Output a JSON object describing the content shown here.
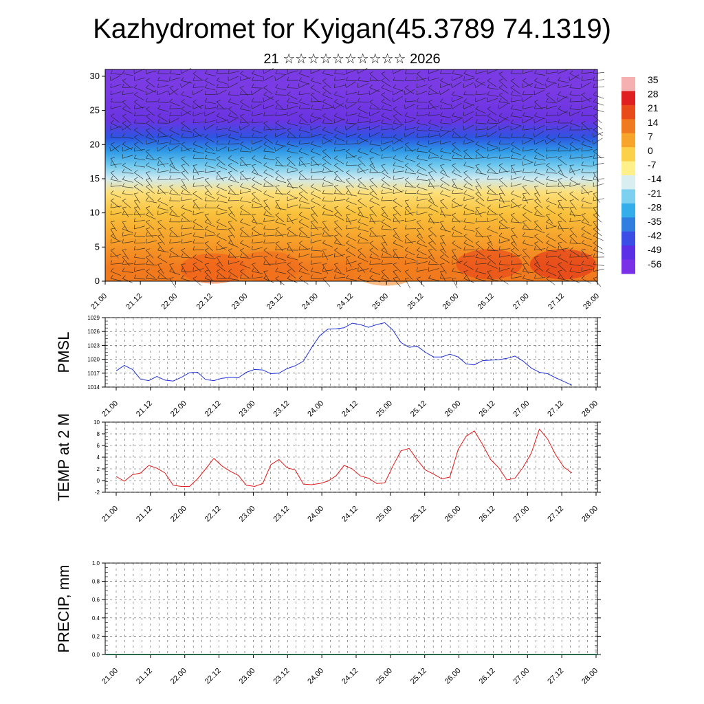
{
  "title": "Kazhydromet for Kyigan(45.3789 74.1319)",
  "subtitle": "21 ☆☆☆☆☆☆☆☆☆☆ 2026",
  "chart_data": [
    {
      "type": "heatmap",
      "title": "",
      "xlabel": "",
      "ylabel": "",
      "x_ticks": [
        "21.00",
        "21.12",
        "22.00",
        "22.12",
        "23.00",
        "23.12",
        "24.00",
        "24.12",
        "25.00",
        "25.12",
        "26.00",
        "26.12",
        "27.00",
        "27.12",
        "28.00"
      ],
      "y_ticks": [
        0,
        5,
        10,
        15,
        20,
        25,
        30
      ],
      "ylim": [
        0,
        31
      ],
      "colorbar": {
        "labels": [
          "35",
          "28",
          "21",
          "14",
          "7",
          "0",
          "-7",
          "-14",
          "-21",
          "-28",
          "-35",
          "-42",
          "-49",
          "-56"
        ],
        "colors": [
          "#f5b0b0",
          "#e02020",
          "#e84a1a",
          "#f07a20",
          "#f6a42a",
          "#fbd04a",
          "#fff08a",
          "#d9eef0",
          "#7ed0f0",
          "#34aeea",
          "#2f7ee0",
          "#3a4ee6",
          "#5b2fe6",
          "#7a30e6"
        ]
      },
      "layers": [
        {
          "y_from": 0,
          "y_to": 4,
          "color": "#f27a1e"
        },
        {
          "y_from": 4,
          "y_to": 8,
          "color": "#f6a02a"
        },
        {
          "y_from": 8,
          "y_to": 12,
          "color": "#f9c23c"
        },
        {
          "y_from": 12,
          "y_to": 14,
          "color": "#fde07a"
        },
        {
          "y_from": 14,
          "y_to": 16,
          "color": "#cfeaf0"
        },
        {
          "y_from": 16,
          "y_to": 18,
          "color": "#6ec8ee"
        },
        {
          "y_from": 18,
          "y_to": 20,
          "color": "#2f9ae6"
        },
        {
          "y_from": 20,
          "y_to": 22,
          "color": "#2c56e2"
        },
        {
          "y_from": 22,
          "y_to": 25,
          "color": "#6a34e2"
        },
        {
          "y_from": 25,
          "y_to": 31,
          "color": "#7a3ae4"
        }
      ]
    },
    {
      "type": "line",
      "ylabel": "PMSL",
      "x_ticks": [
        "21.00",
        "21.12",
        "22.00",
        "22.12",
        "23.00",
        "23.12",
        "24.00",
        "24.12",
        "25.00",
        "25.12",
        "26.00",
        "26.12",
        "27.00",
        "27.12",
        "28.00"
      ],
      "y_ticks": [
        1014,
        1017,
        1020,
        1023,
        1026,
        1029
      ],
      "ylim": [
        1014,
        1029
      ],
      "series": [
        {
          "color": "#1f2fd6",
          "values": [
            1017.5,
            1018.7,
            1017.8,
            1015.7,
            1015.4,
            1016.3,
            1015.5,
            1015.3,
            1016.1,
            1017.1,
            1017.2,
            1015.6,
            1015.4,
            1015.9,
            1016.1,
            1016.0,
            1017.2,
            1017.8,
            1017.7,
            1016.9,
            1017.0,
            1018.0,
            1018.6,
            1019.6,
            1022.5,
            1025.1,
            1026.5,
            1026.6,
            1026.8,
            1027.8,
            1027.5,
            1026.9,
            1027.5,
            1027.9,
            1026.3,
            1023.6,
            1022.6,
            1022.8,
            1021.5,
            1020.5,
            1020.5,
            1021.1,
            1020.5,
            1019.0,
            1018.8,
            1019.7,
            1019.8,
            1019.9,
            1020.2,
            1020.7,
            1019.6,
            1018.1,
            1017.2,
            1016.9,
            1016.0,
            1015.2,
            1014.4
          ]
        }
      ]
    },
    {
      "type": "line",
      "ylabel": "TEMP at 2 M",
      "x_ticks": [
        "21.00",
        "21.12",
        "22.00",
        "22.12",
        "23.00",
        "23.12",
        "24.00",
        "24.12",
        "25.00",
        "25.12",
        "26.00",
        "26.12",
        "27.00",
        "27.12",
        "28.00"
      ],
      "y_ticks": [
        -2,
        0,
        2,
        4,
        6,
        8,
        10
      ],
      "ylim": [
        -2,
        10
      ],
      "series": [
        {
          "color": "#e01a1a",
          "values": [
            0.7,
            -0.1,
            1.0,
            1.3,
            2.6,
            2.1,
            1.3,
            -0.8,
            -1.0,
            -1.0,
            0.3,
            2.0,
            3.8,
            2.5,
            1.6,
            0.9,
            -0.8,
            -1.0,
            -0.5,
            2.7,
            3.6,
            2.2,
            1.8,
            -0.6,
            -0.7,
            -0.5,
            -0.1,
            0.8,
            2.6,
            2.0,
            0.8,
            0.4,
            -0.5,
            -0.4,
            2.5,
            5.1,
            5.5,
            3.5,
            1.8,
            1.1,
            0.3,
            0.6,
            5.3,
            7.6,
            8.5,
            6.2,
            3.6,
            2.2,
            0.1,
            0.4,
            2.3,
            4.7,
            8.8,
            7.1,
            4.4,
            2.3,
            1.3
          ]
        }
      ]
    },
    {
      "type": "bar",
      "ylabel": "PRECIP, mm",
      "x_ticks": [
        "21.00",
        "21.12",
        "22.00",
        "22.12",
        "23.00",
        "23.12",
        "24.00",
        "24.12",
        "25.00",
        "25.12",
        "26.00",
        "26.12",
        "27.00",
        "27.12",
        "28.00"
      ],
      "y_ticks": [
        "0.0",
        "0.2",
        "0.4",
        "0.6",
        "0.8",
        "1.0"
      ],
      "ylim": [
        0,
        1
      ],
      "values": [
        0,
        0,
        0,
        0,
        0,
        0,
        0,
        0,
        0,
        0,
        0,
        0,
        0,
        0,
        0,
        0,
        0,
        0,
        0,
        0,
        0,
        0,
        0,
        0,
        0,
        0,
        0,
        0,
        0,
        0,
        0,
        0,
        0,
        0,
        0,
        0,
        0,
        0,
        0,
        0,
        0,
        0,
        0,
        0,
        0,
        0,
        0,
        0,
        0,
        0,
        0,
        0,
        0,
        0,
        0,
        0,
        0
      ]
    }
  ]
}
